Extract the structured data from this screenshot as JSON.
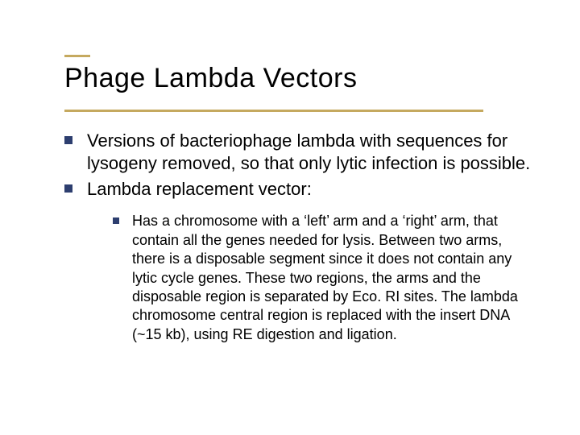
{
  "slide": {
    "title": "Phage Lambda Vectors",
    "accent_color": "#c5a95f",
    "accent_short_width": 32,
    "accent_long_width": 520,
    "bullet_color": "#2d3e6f",
    "title_fontsize": 34,
    "body_fontsize_l1": 22,
    "body_fontsize_l2": 18,
    "background_color": "#ffffff",
    "text_color": "#000000",
    "bullets": [
      {
        "level": 1,
        "text": "Versions of bacteriophage lambda with sequences for lysogeny removed, so that only lytic infection is possible."
      },
      {
        "level": 1,
        "text": "Lambda replacement vector:"
      }
    ],
    "sub_bullets": [
      {
        "level": 2,
        "text": "Has a chromosome with a ‘left’ arm and a ‘right’ arm, that contain all the genes needed for lysis. Between two arms, there is a disposable segment since it does not contain any lytic cycle genes. These two regions, the arms and the disposable region is separated by Eco. RI sites. The lambda chromosome central region is replaced with the insert DNA (~15 kb), using RE digestion and ligation."
      }
    ]
  }
}
